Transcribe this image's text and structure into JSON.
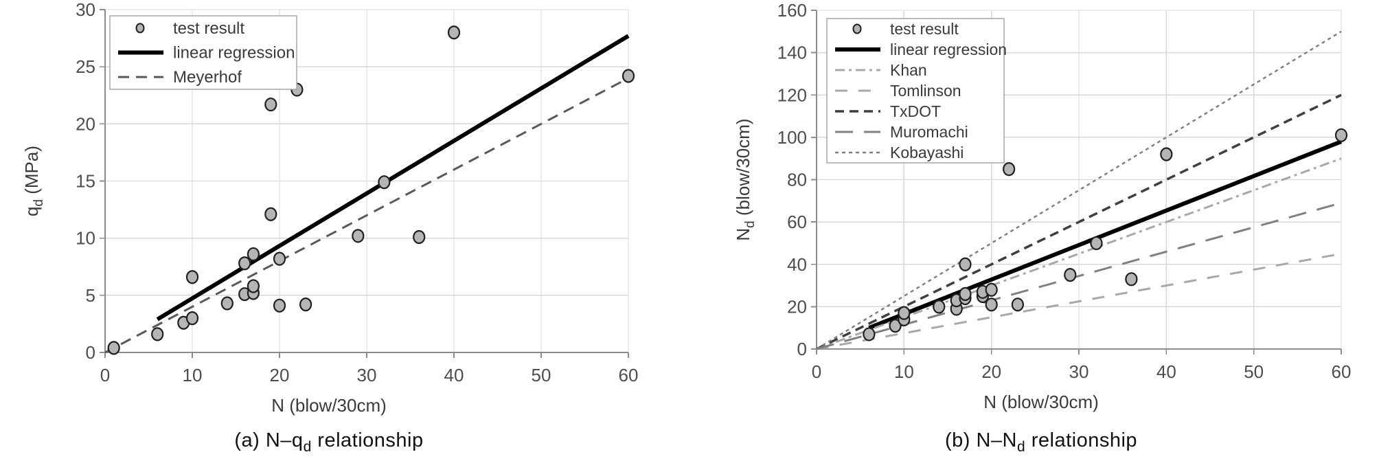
{
  "styles": {
    "background": "#ffffff",
    "grid": "#d8d8d8",
    "axis": "#8c8c8c",
    "tick_text": "#4d4d4d",
    "title_text": "#3a3a3a",
    "caption_text": "#111111",
    "legend_border": "#a6a6a6",
    "legend_fill": "#ffffff"
  },
  "chart_data": [
    {
      "id": "a",
      "type": "scatter",
      "caption": [
        {
          "t": "(a)  N–q"
        },
        {
          "t": "d",
          "sub": true
        },
        {
          "t": "  relationship"
        }
      ],
      "xlabel": [
        {
          "t": "N (blow/30cm)"
        }
      ],
      "ylabel": [
        {
          "t": "q"
        },
        {
          "t": "d",
          "sub": true
        },
        {
          "t": " (MPa)"
        }
      ],
      "xlim": [
        0,
        60
      ],
      "ylim": [
        0,
        30
      ],
      "x_ticks": [
        0,
        10,
        20,
        30,
        40,
        50,
        60
      ],
      "y_ticks": [
        0,
        5,
        10,
        15,
        20,
        25,
        30
      ],
      "grid": true,
      "legend_position": "top-left",
      "marker": {
        "fill": "#b5b5b5",
        "stroke": "#1f1f1f",
        "radius": 8
      },
      "points": [
        [
          1,
          0.4
        ],
        [
          6,
          1.6
        ],
        [
          9,
          2.6
        ],
        [
          10,
          3.0
        ],
        [
          10,
          6.6
        ],
        [
          14,
          4.3
        ],
        [
          16,
          5.1
        ],
        [
          16,
          7.8
        ],
        [
          17,
          5.2
        ],
        [
          17,
          5.8
        ],
        [
          17,
          8.6
        ],
        [
          19,
          12.1
        ],
        [
          19,
          21.7
        ],
        [
          20,
          4.1
        ],
        [
          20,
          8.2
        ],
        [
          22,
          23.0
        ],
        [
          23,
          4.2
        ],
        [
          29,
          10.2
        ],
        [
          32,
          14.9
        ],
        [
          36,
          10.1
        ],
        [
          40,
          28.0
        ],
        [
          60,
          24.2
        ]
      ],
      "lines": [
        {
          "name": "linear regression",
          "x": [
            6,
            60
          ],
          "y": [
            2.9,
            27.7
          ],
          "color": "#000000",
          "width": 6,
          "dash": null
        },
        {
          "name": "Meyerhof",
          "x": [
            0,
            60
          ],
          "y": [
            0,
            24
          ],
          "color": "#595959",
          "width": 3,
          "dash": "16 10"
        }
      ],
      "legend": [
        {
          "label": "test result",
          "sample": "marker"
        },
        {
          "label": "linear regression",
          "sample": "line",
          "line_index": 0
        },
        {
          "label": "Meyerhof",
          "sample": "line",
          "line_index": 1
        }
      ]
    },
    {
      "id": "b",
      "type": "scatter",
      "caption": [
        {
          "t": "(b)  N–N"
        },
        {
          "t": "d",
          "sub": true
        },
        {
          "t": "  relationship"
        }
      ],
      "xlabel": [
        {
          "t": "N (blow/30cm)"
        }
      ],
      "ylabel": [
        {
          "t": "N"
        },
        {
          "t": "d",
          "sub": true
        },
        {
          "t": " (blow/30cm)"
        }
      ],
      "xlim": [
        0,
        60
      ],
      "ylim": [
        0,
        160
      ],
      "x_ticks": [
        0,
        10,
        20,
        30,
        40,
        50,
        60
      ],
      "y_ticks": [
        0,
        20,
        40,
        60,
        80,
        100,
        120,
        140,
        160
      ],
      "grid": true,
      "legend_position": "top-left",
      "marker": {
        "fill": "#b5b5b5",
        "stroke": "#1f1f1f",
        "radius": 8
      },
      "points": [
        [
          6,
          7
        ],
        [
          9,
          11
        ],
        [
          10,
          14
        ],
        [
          10,
          17
        ],
        [
          14,
          20
        ],
        [
          16,
          19
        ],
        [
          16,
          23
        ],
        [
          17,
          24
        ],
        [
          17,
          26
        ],
        [
          17,
          40
        ],
        [
          19,
          25
        ],
        [
          19,
          27
        ],
        [
          20,
          21
        ],
        [
          20,
          28
        ],
        [
          22,
          85
        ],
        [
          23,
          21
        ],
        [
          29,
          35
        ],
        [
          32,
          50
        ],
        [
          36,
          33
        ],
        [
          40,
          92
        ],
        [
          60,
          101
        ]
      ],
      "lines": [
        {
          "name": "linear regression",
          "x": [
            6,
            60
          ],
          "y": [
            10,
            98
          ],
          "color": "#000000",
          "width": 6,
          "dash": null
        },
        {
          "name": "Khan",
          "x": [
            0,
            60
          ],
          "y": [
            0,
            90
          ],
          "color": "#a8a8a8",
          "width": 3,
          "dash": "14 6 4 6"
        },
        {
          "name": "Tomlinson",
          "x": [
            0,
            60
          ],
          "y": [
            0,
            45
          ],
          "color": "#a8a8a8",
          "width": 3,
          "dash": "18 16"
        },
        {
          "name": "TxDOT",
          "x": [
            0,
            60
          ],
          "y": [
            0,
            120
          ],
          "color": "#3f3f3f",
          "width": 3.5,
          "dash": "13 8"
        },
        {
          "name": "Muromachi",
          "x": [
            0,
            60
          ],
          "y": [
            0,
            69
          ],
          "color": "#808080",
          "width": 3,
          "dash": "26 16"
        },
        {
          "name": "Kobayashi",
          "x": [
            0,
            60
          ],
          "y": [
            0,
            150
          ],
          "color": "#808080",
          "width": 2.5,
          "dash": "5 5"
        }
      ],
      "legend": [
        {
          "label": "test result",
          "sample": "marker"
        },
        {
          "label": "linear regression",
          "sample": "line",
          "line_index": 0
        },
        {
          "label": "Khan",
          "sample": "line",
          "line_index": 1
        },
        {
          "label": "Tomlinson",
          "sample": "line",
          "line_index": 2
        },
        {
          "label": "TxDOT",
          "sample": "line",
          "line_index": 3
        },
        {
          "label": "Muromachi",
          "sample": "line",
          "line_index": 4
        },
        {
          "label": "Kobayashi",
          "sample": "line",
          "line_index": 5
        }
      ]
    }
  ]
}
